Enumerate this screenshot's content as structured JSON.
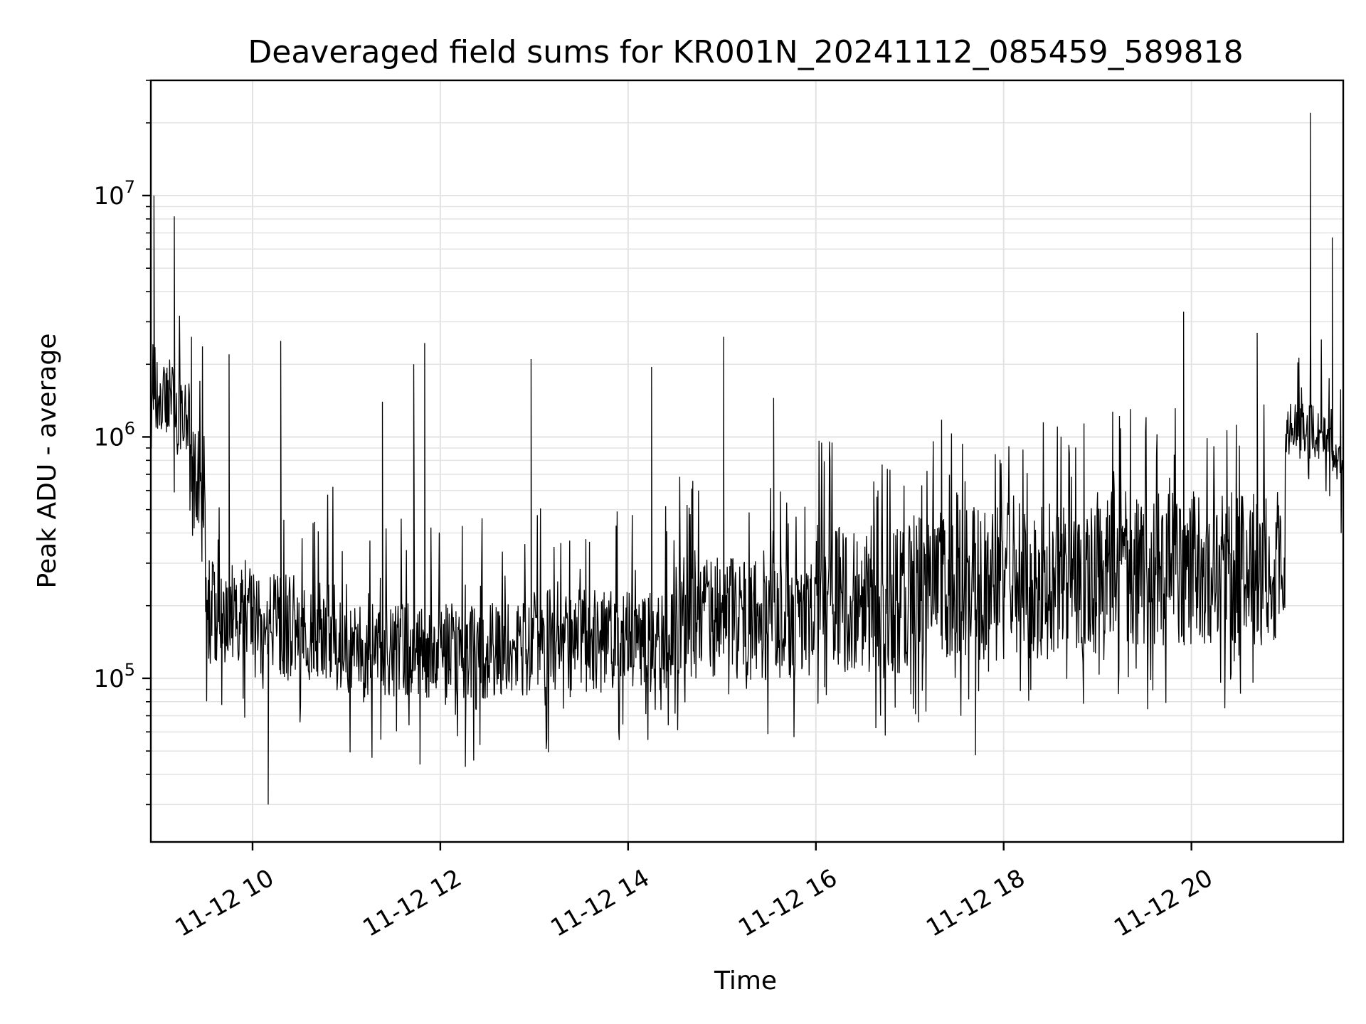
{
  "chart_data": {
    "type": "line",
    "title": "Deaveraged field sums for KR001N_20241112_085459_589818",
    "xlabel": "Time",
    "ylabel": "Peak ADU - average",
    "yscale": "log",
    "grid": true,
    "line_color": "#000000",
    "grid_color": "#e3e3e3",
    "xlim": [
      "2024-11-12 08:55",
      "2024-11-12 21:37"
    ],
    "ylim": [
      21000,
      30000000
    ],
    "x_ticks": [
      {
        "t": "2024-11-12 10:00",
        "label": "11-12 10"
      },
      {
        "t": "2024-11-12 12:00",
        "label": "11-12 12"
      },
      {
        "t": "2024-11-12 14:00",
        "label": "11-12 14"
      },
      {
        "t": "2024-11-12 16:00",
        "label": "11-12 16"
      },
      {
        "t": "2024-11-12 18:00",
        "label": "11-12 18"
      },
      {
        "t": "2024-11-12 20:00",
        "label": "11-12 20"
      }
    ],
    "y_ticks": [
      {
        "value": 100000,
        "base": "10",
        "exp": "5"
      },
      {
        "value": 1000000,
        "base": "10",
        "exp": "6"
      },
      {
        "value": 10000000,
        "base": "10",
        "exp": "7"
      }
    ],
    "series": [
      {
        "segments": [
          {
            "start": "2024-11-12 08:55",
            "end": "2024-11-12 09:00",
            "low": 1000000,
            "high": 2500000
          },
          {
            "start": "2024-11-12 09:00",
            "end": "2024-11-12 09:10",
            "low": 1000000,
            "high": 2000000
          },
          {
            "start": "2024-11-12 09:10",
            "end": "2024-11-12 09:20",
            "low": 800000,
            "high": 1700000
          },
          {
            "start": "2024-11-12 09:20",
            "end": "2024-11-12 09:30",
            "low": 350000,
            "high": 1100000
          },
          {
            "start": "2024-11-12 09:30",
            "end": "2024-11-12 10:00",
            "low": 110000,
            "high": 320000
          },
          {
            "start": "2024-11-12 10:00",
            "end": "2024-11-12 11:00",
            "low": 95000,
            "high": 280000
          },
          {
            "start": "2024-11-12 11:00",
            "end": "2024-11-12 13:00",
            "low": 80000,
            "high": 210000
          },
          {
            "start": "2024-11-12 13:00",
            "end": "2024-11-12 14:30",
            "low": 85000,
            "high": 240000
          },
          {
            "start": "2024-11-12 14:30",
            "end": "2024-11-12 16:00",
            "low": 95000,
            "high": 330000
          },
          {
            "start": "2024-11-12 16:00",
            "end": "2024-11-12 17:00",
            "low": 100000,
            "high": 450000
          },
          {
            "start": "2024-11-12 17:00",
            "end": "2024-11-12 19:00",
            "low": 110000,
            "high": 560000
          },
          {
            "start": "2024-11-12 19:00",
            "end": "2024-11-12 21:00",
            "low": 130000,
            "high": 620000
          },
          {
            "start": "2024-11-12 21:00",
            "end": "2024-11-12 21:30",
            "low": 800000,
            "high": 1400000
          },
          {
            "start": "2024-11-12 21:30",
            "end": "2024-11-12 21:37",
            "low": 700000,
            "high": 950000
          }
        ],
        "spikes": [
          {
            "t": "2024-11-12 08:57",
            "value": 10000000
          },
          {
            "t": "2024-11-12 09:10",
            "value": 8200000
          },
          {
            "t": "2024-11-12 09:21",
            "value": 2600000
          },
          {
            "t": "2024-11-12 09:45",
            "value": 2200000
          },
          {
            "t": "2024-11-12 10:10",
            "value": 30000
          },
          {
            "t": "2024-11-12 10:18",
            "value": 2500000
          },
          {
            "t": "2024-11-12 11:23",
            "value": 1400000
          },
          {
            "t": "2024-11-12 11:43",
            "value": 2000000
          },
          {
            "t": "2024-11-12 11:47",
            "value": 44000
          },
          {
            "t": "2024-11-12 11:50",
            "value": 2450000
          },
          {
            "t": "2024-11-12 12:16",
            "value": 43000
          },
          {
            "t": "2024-11-12 12:58",
            "value": 2100000
          },
          {
            "t": "2024-11-12 14:15",
            "value": 1950000
          },
          {
            "t": "2024-11-12 15:01",
            "value": 2600000
          },
          {
            "t": "2024-11-12 15:33",
            "value": 1450000
          },
          {
            "t": "2024-11-12 17:42",
            "value": 48000
          },
          {
            "t": "2024-11-12 19:55",
            "value": 3300000
          },
          {
            "t": "2024-11-12 20:42",
            "value": 2700000
          },
          {
            "t": "2024-11-12 21:16",
            "value": 22000000
          },
          {
            "t": "2024-11-12 21:30",
            "value": 6700000
          }
        ]
      }
    ]
  }
}
